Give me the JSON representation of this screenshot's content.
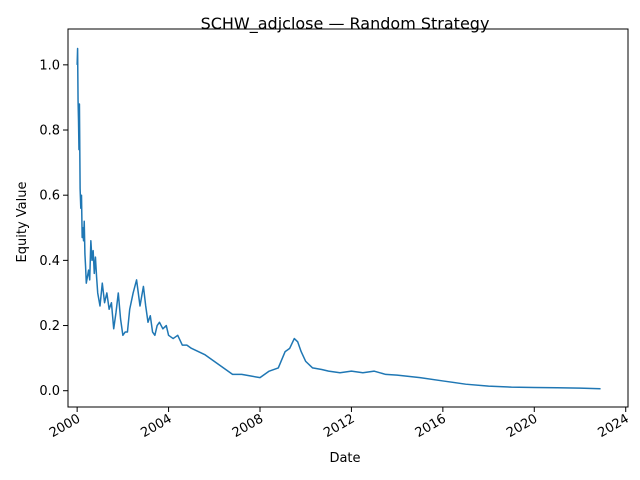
{
  "chart_data": {
    "type": "line",
    "title": "SCHW_adjclose — Random Strategy",
    "xlabel": "Date",
    "ylabel": "Equity Value",
    "xlim": [
      1999.6,
      2024.1
    ],
    "ylim": [
      -0.05,
      1.11
    ],
    "grid": false,
    "x_ticks": [
      2000,
      2004,
      2008,
      2012,
      2016,
      2020,
      2024
    ],
    "x_tick_labels": [
      "2000",
      "2004",
      "2008",
      "2012",
      "2016",
      "2020",
      "2024"
    ],
    "y_ticks": [
      0.0,
      0.2,
      0.4,
      0.6,
      0.8,
      1.0
    ],
    "y_tick_labels": [
      "0.0",
      "0.2",
      "0.4",
      "0.6",
      "0.8",
      "1.0"
    ],
    "series": [
      {
        "color": "#1f77b4",
        "x": [
          2000.0,
          2000.02,
          2000.04,
          2000.06,
          2000.08,
          2000.1,
          2000.13,
          2000.16,
          2000.19,
          2000.22,
          2000.25,
          2000.28,
          2000.31,
          2000.34,
          2000.37,
          2000.4,
          2000.45,
          2000.5,
          2000.55,
          2000.6,
          2000.65,
          2000.7,
          2000.75,
          2000.8,
          2000.85,
          2000.9,
          2001.0,
          2001.1,
          2001.2,
          2001.3,
          2001.4,
          2001.5,
          2001.6,
          2001.7,
          2001.8,
          2001.9,
          2002.0,
          2002.1,
          2002.2,
          2002.3,
          2002.45,
          2002.6,
          2002.75,
          2002.9,
          2003.0,
          2003.1,
          2003.2,
          2003.3,
          2003.4,
          2003.5,
          2003.6,
          2003.75,
          2003.9,
          2004.0,
          2004.2,
          2004.4,
          2004.6,
          2004.8,
          2005.0,
          2005.3,
          2005.6,
          2006.0,
          2006.4,
          2006.8,
          2007.2,
          2007.6,
          2008.0,
          2008.4,
          2008.8,
          2009.1,
          2009.3,
          2009.5,
          2009.65,
          2009.8,
          2010.0,
          2010.3,
          2010.7,
          2011.0,
          2011.5,
          2012.0,
          2012.5,
          2013.0,
          2013.5,
          2014.0,
          2015.0,
          2016.0,
          2017.0,
          2018.0,
          2019.0,
          2020.0,
          2021.0,
          2022.0,
          2022.9
        ],
        "y": [
          1.0,
          1.05,
          0.89,
          0.83,
          0.74,
          0.88,
          0.62,
          0.56,
          0.6,
          0.47,
          0.5,
          0.46,
          0.52,
          0.42,
          0.38,
          0.33,
          0.35,
          0.37,
          0.34,
          0.46,
          0.4,
          0.43,
          0.36,
          0.41,
          0.35,
          0.3,
          0.26,
          0.33,
          0.27,
          0.3,
          0.25,
          0.27,
          0.19,
          0.24,
          0.3,
          0.22,
          0.17,
          0.18,
          0.18,
          0.25,
          0.3,
          0.34,
          0.26,
          0.32,
          0.26,
          0.21,
          0.23,
          0.18,
          0.17,
          0.2,
          0.21,
          0.19,
          0.2,
          0.17,
          0.16,
          0.17,
          0.14,
          0.14,
          0.13,
          0.12,
          0.11,
          0.09,
          0.07,
          0.05,
          0.05,
          0.045,
          0.04,
          0.06,
          0.07,
          0.12,
          0.13,
          0.16,
          0.15,
          0.12,
          0.09,
          0.07,
          0.065,
          0.06,
          0.055,
          0.06,
          0.055,
          0.06,
          0.05,
          0.048,
          0.04,
          0.03,
          0.02,
          0.014,
          0.011,
          0.01,
          0.009,
          0.008,
          0.006
        ]
      }
    ]
  }
}
